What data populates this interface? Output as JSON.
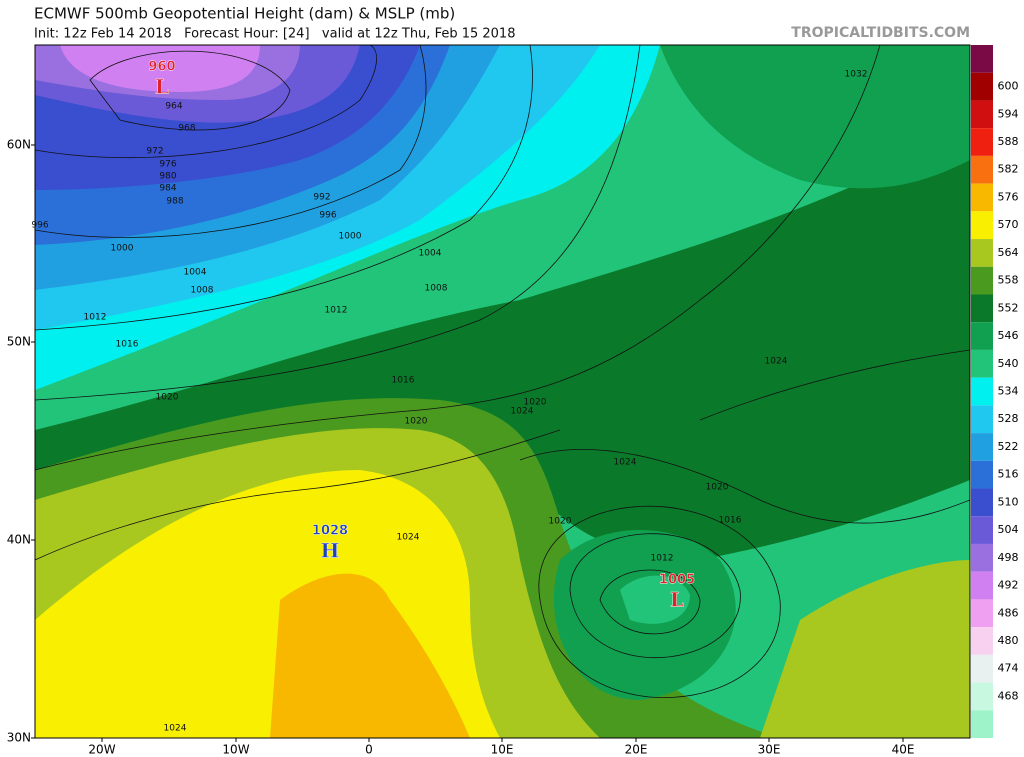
{
  "header": {
    "title": "ECMWF 500mb Geopotential Height (dam) & MSLP (mb)",
    "subtitle": "Init: 12z Feb 14 2018   Forecast Hour: [24]   valid at 12z Thu, Feb 15 2018",
    "site": "TROPICALTIDBITS.COM"
  },
  "map": {
    "lat_labels": [
      "60N",
      "50N",
      "40N",
      "30N"
    ],
    "lon_labels": [
      "20W",
      "10W",
      "0",
      "10E",
      "20E",
      "30E",
      "40E"
    ],
    "centers": [
      {
        "value": "960",
        "symbol": "L"
      },
      {
        "value": "1005",
        "symbol": "L"
      },
      {
        "value": "1028",
        "symbol": "H"
      }
    ],
    "isobar_labels": [
      "964",
      "968",
      "972",
      "976",
      "980",
      "984",
      "988",
      "996",
      "1000",
      "1004",
      "1008",
      "1012",
      "1016",
      "1020",
      "992",
      "996",
      "1000",
      "1004",
      "1008",
      "1012",
      "1016",
      "1020",
      "1024",
      "1020",
      "1024",
      "1024",
      "1020",
      "1020",
      "1016",
      "1012",
      "1024",
      "1032",
      "1024"
    ]
  },
  "colorbar": {
    "colors": [
      "#7a0a45",
      "#a00000",
      "#d01010",
      "#f02010",
      "#f87010",
      "#f8b800",
      "#f8f000",
      "#a8c820",
      "#4a9a20",
      "#0a7a2a",
      "#10a050",
      "#22c47a",
      "#00f0f0",
      "#20c8f0",
      "#20a0e0",
      "#2a70d8",
      "#3a4ed0",
      "#6a5ad8",
      "#9a70e0",
      "#d080f0",
      "#f0a0f0",
      "#f8d0f0",
      "#e8f0f0",
      "#c8f8e0",
      "#9ff3c9"
    ],
    "labels": [
      "600",
      "594",
      "588",
      "582",
      "576",
      "570",
      "564",
      "558",
      "552",
      "546",
      "540",
      "534",
      "528",
      "522",
      "516",
      "510",
      "504",
      "498",
      "492",
      "486",
      "480",
      "474",
      "468"
    ]
  }
}
